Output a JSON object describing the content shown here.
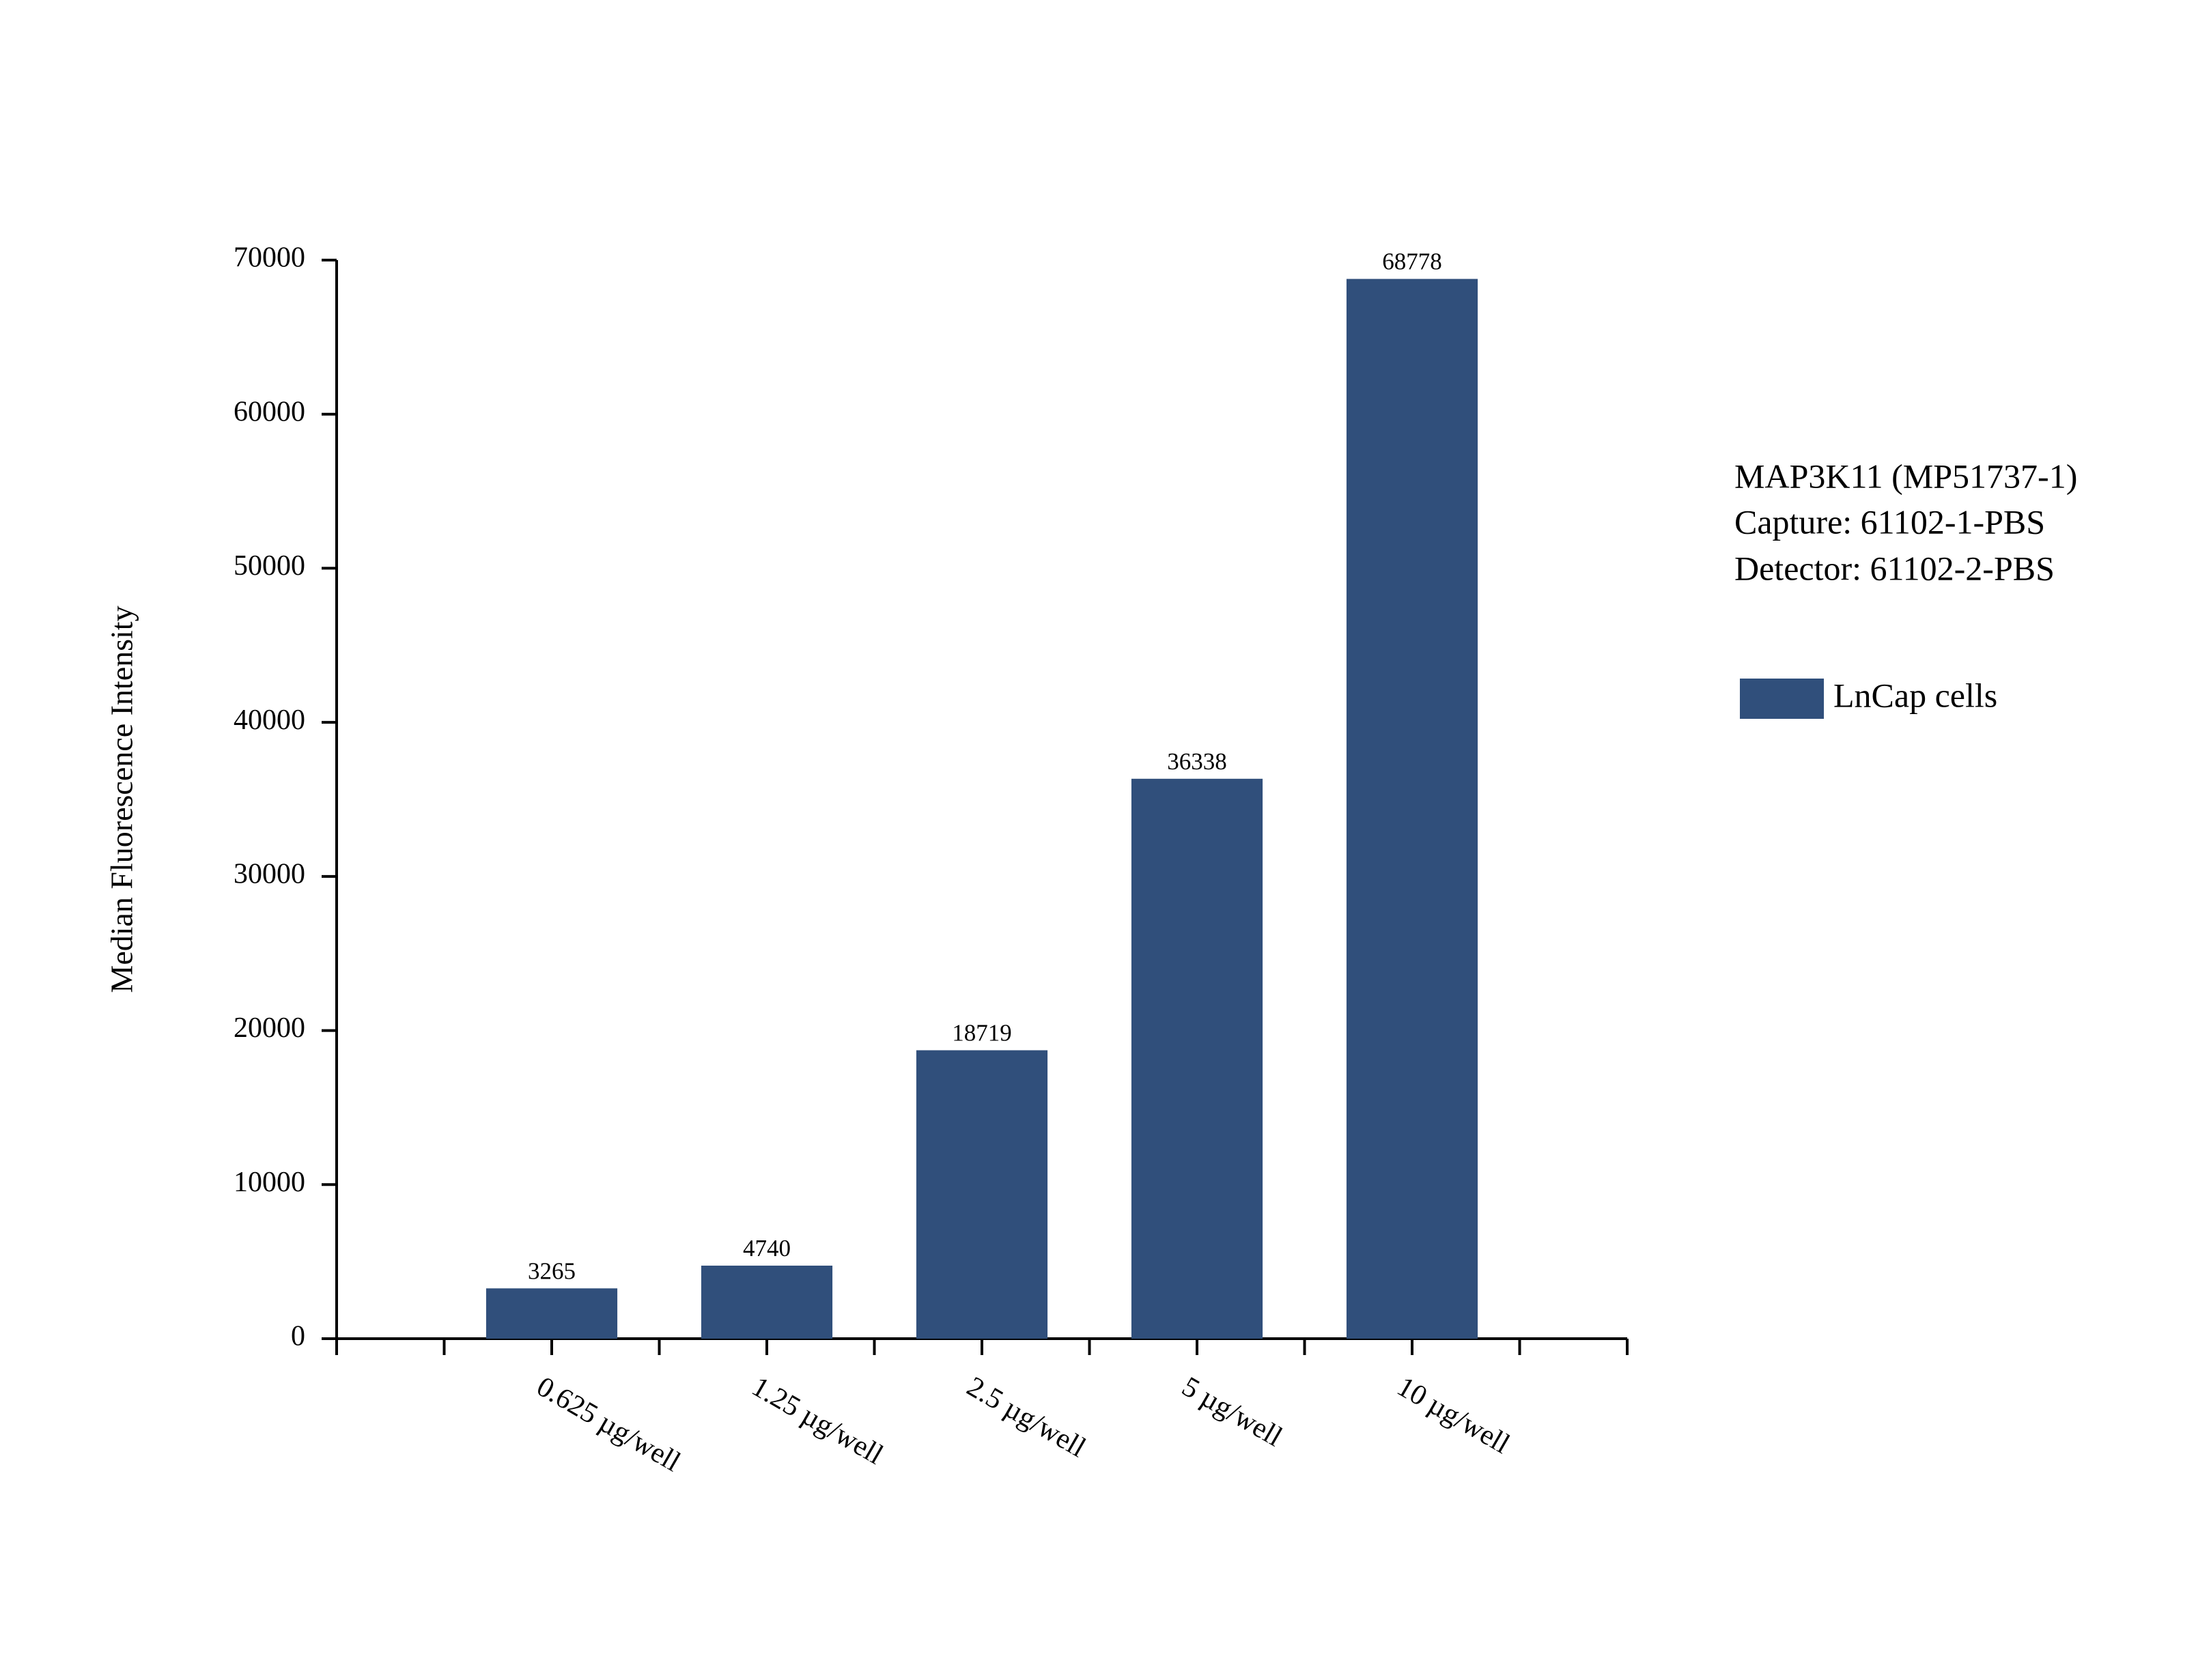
{
  "chart_data": {
    "type": "bar",
    "y_label": "Median Fluorescence Intensity",
    "annotations": [
      "MAP3K11 (MP51737-1)",
      "Capture: 61102-1-PBS",
      "Detector: 61102-2-PBS"
    ],
    "categories": [
      "0.625 µg/well",
      "1.25 µg/well",
      "2.5 µg/well",
      "5 µg/well",
      "10 µg/well"
    ],
    "series": [
      {
        "name": "LnCap cells",
        "color": "#304f7b",
        "values": [
          3265,
          4740,
          18719,
          36338,
          68778
        ]
      }
    ],
    "ylim": [
      0,
      70000
    ],
    "yticks": [
      0,
      10000,
      20000,
      30000,
      40000,
      50000,
      60000,
      70000
    ],
    "grid": false,
    "legend": "right"
  }
}
